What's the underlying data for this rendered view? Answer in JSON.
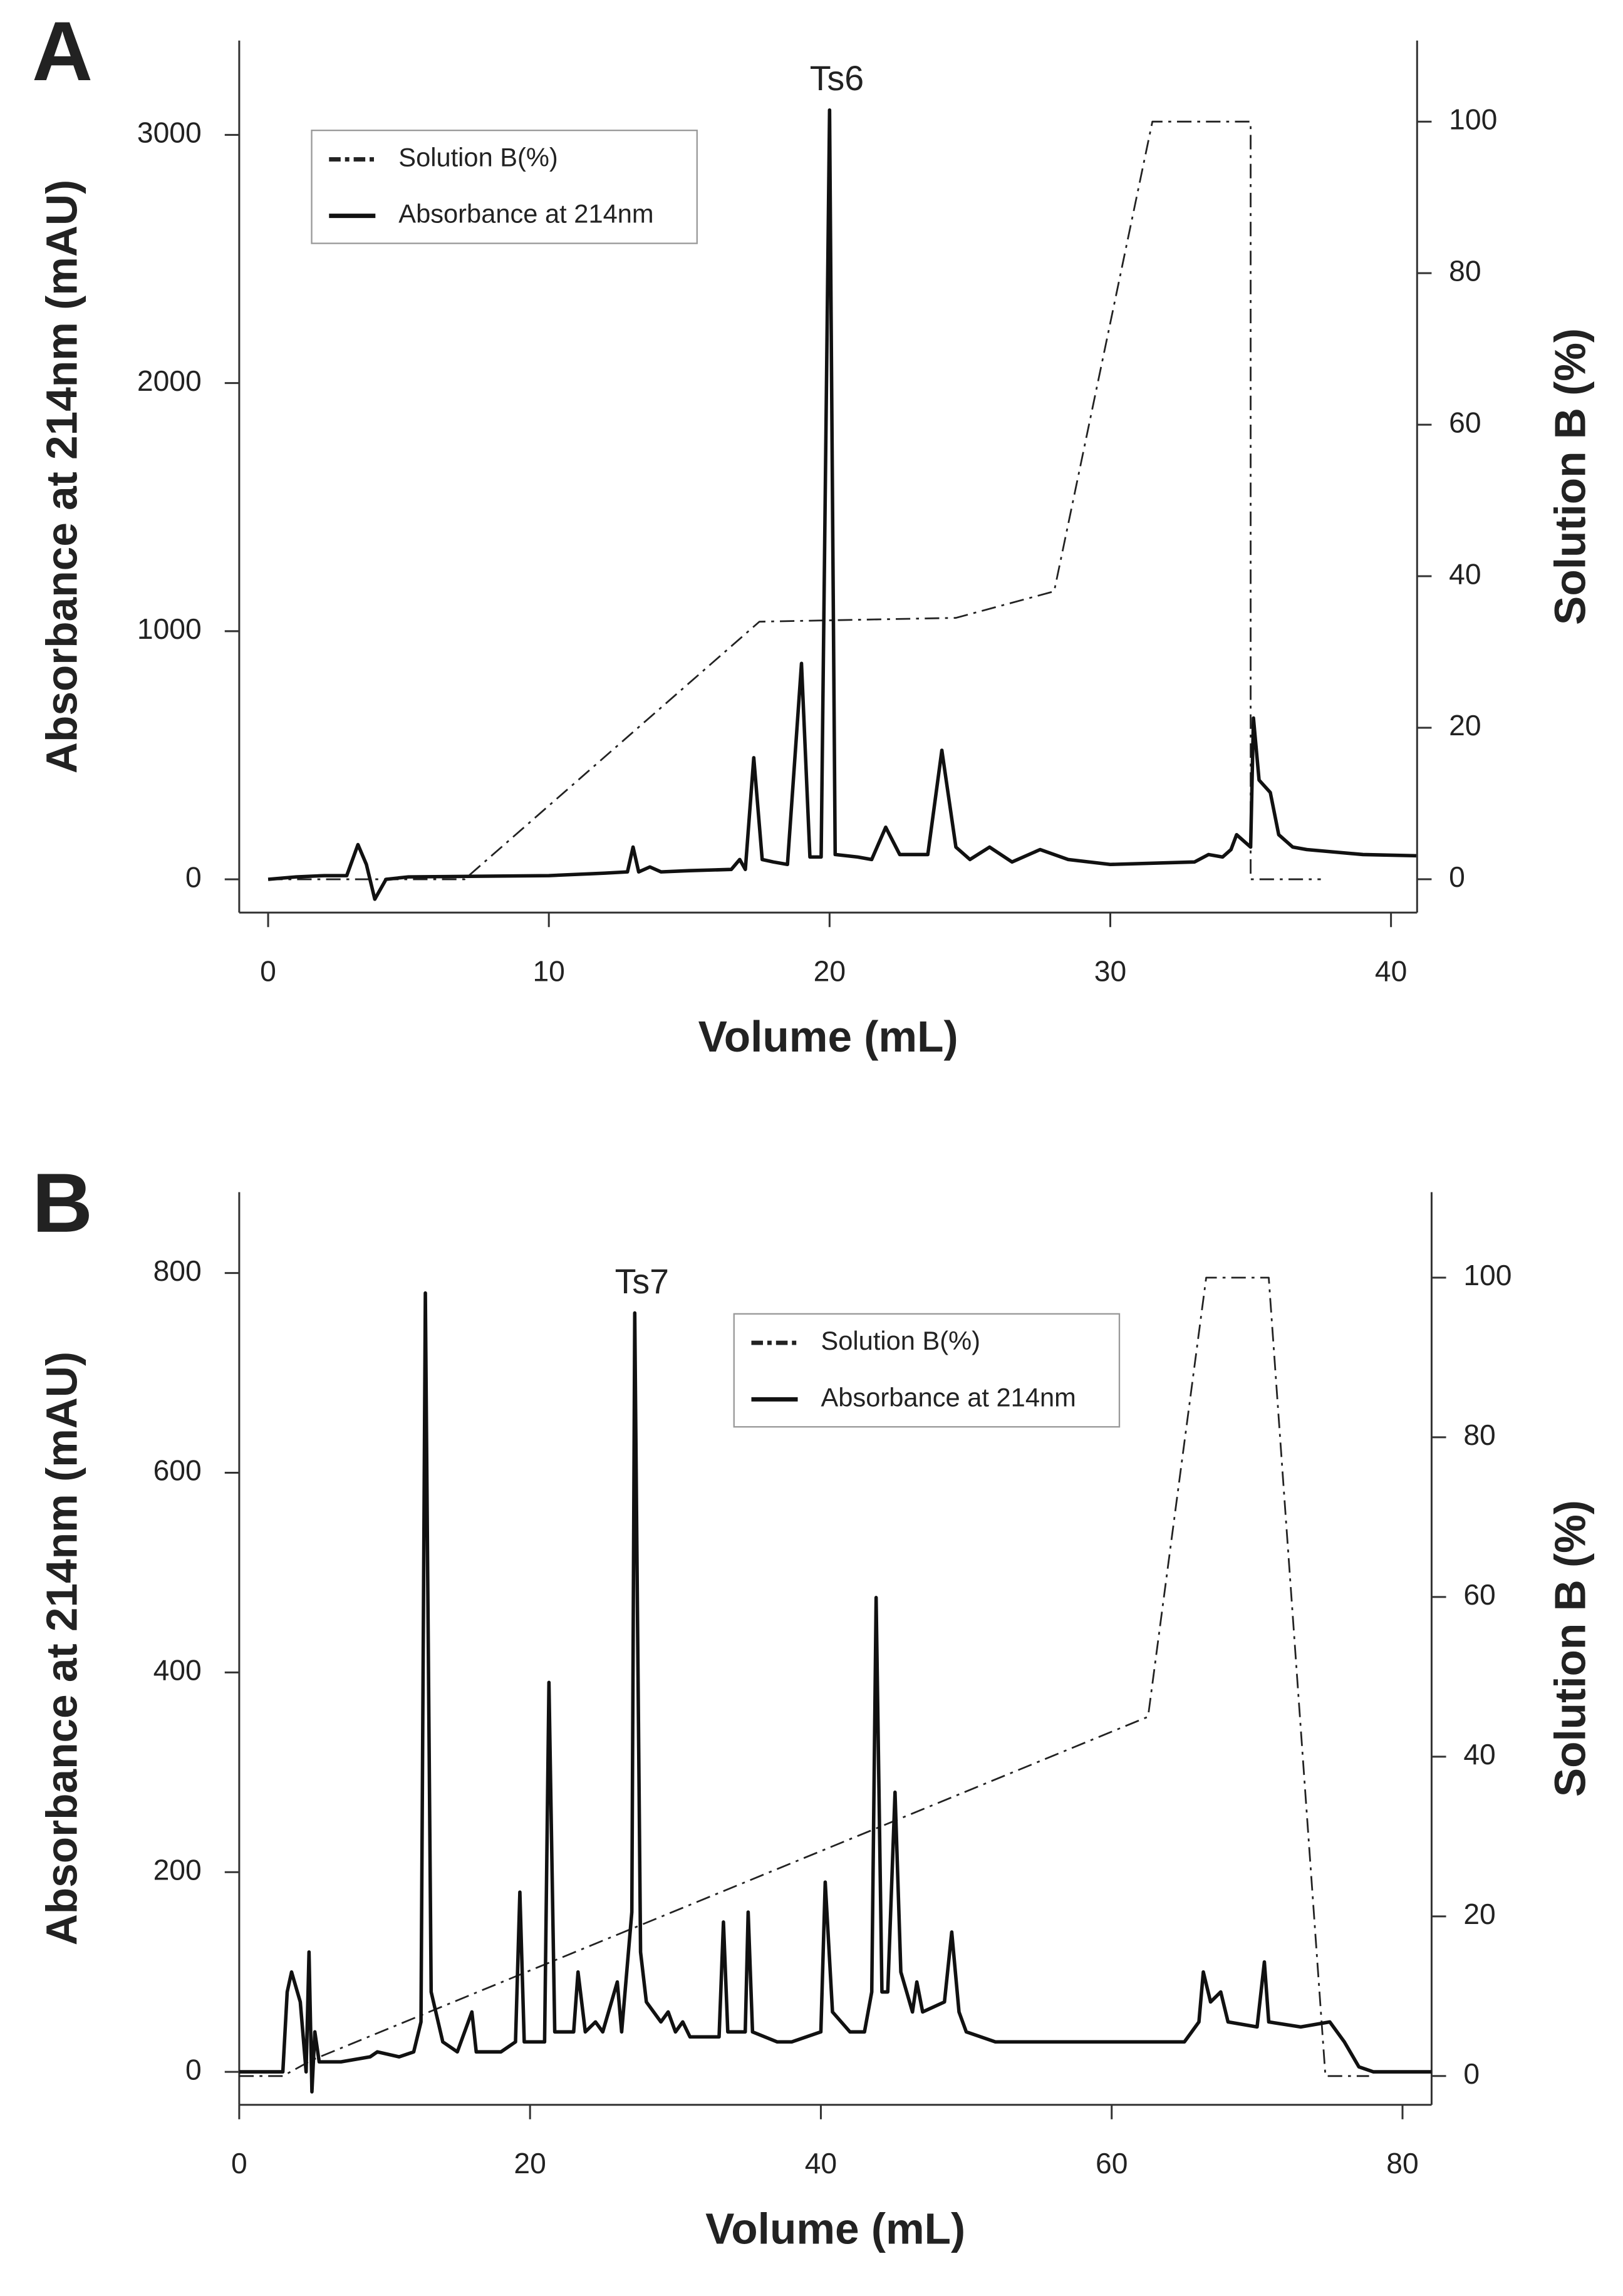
{
  "chart_data": [
    {
      "type": "line",
      "panel": "A",
      "xlabel": "Volume (mL)",
      "ylabel": "Absorbance at 214nm (mAU)",
      "y2label": "Solution B (%)",
      "xlim": [
        -1.03,
        40.93
      ],
      "ylim": [
        -134,
        3380
      ],
      "y2lim": [
        -4.4,
        110.7
      ],
      "xticks": [
        0,
        10,
        20,
        30,
        40
      ],
      "yticks": [
        0,
        1000,
        2000,
        3000
      ],
      "y2ticks": [
        0,
        20,
        40,
        60,
        80,
        100
      ],
      "legend_position": "upper left",
      "annotations": [
        {
          "text": "Ts6",
          "x": 20,
          "y": 3100
        }
      ],
      "series": [
        {
          "name": "Solution B(%)",
          "color": "#222222",
          "linestyle": "dashdot",
          "axis": "y2",
          "x": [
            0,
            7,
            17.5,
            24.5,
            28,
            31.5,
            35,
            35,
            37.5
          ],
          "values": [
            0,
            0,
            34,
            34.5,
            38,
            100,
            100,
            0,
            0
          ]
        },
        {
          "name": "Absorbance at 214nm",
          "color": "#111111",
          "linestyle": "solid",
          "axis": "y",
          "x": [
            0,
            1,
            2,
            2.8,
            3.2,
            3.5,
            3.8,
            4.2,
            5,
            10,
            12,
            12.8,
            13,
            13.2,
            13.6,
            14,
            15,
            16.5,
            16.8,
            17,
            17.3,
            17.6,
            18,
            18.5,
            19,
            19.3,
            19.7,
            20,
            20.2,
            21,
            21.5,
            22,
            22.5,
            23.5,
            24,
            24.5,
            25,
            25.7,
            26.5,
            27.5,
            28.5,
            30,
            33,
            33.5,
            34,
            34.3,
            34.5,
            35,
            35.1,
            35.3,
            35.7,
            36,
            36.5,
            37,
            38,
            39,
            40.9
          ],
          "values": [
            0,
            10,
            15,
            15,
            140,
            60,
            -80,
            0,
            10,
            15,
            25,
            30,
            130,
            30,
            50,
            30,
            35,
            40,
            80,
            40,
            490,
            80,
            70,
            60,
            870,
            90,
            90,
            3100,
            100,
            90,
            80,
            210,
            100,
            100,
            520,
            130,
            80,
            130,
            70,
            120,
            80,
            60,
            70,
            100,
            90,
            120,
            180,
            130,
            650,
            400,
            350,
            180,
            130,
            120,
            110,
            100,
            95
          ]
        }
      ]
    },
    {
      "type": "line",
      "panel": "B",
      "xlabel": "Volume (mL)",
      "ylabel": "Absorbance at 214nm (mAU)",
      "y2label": "Solution B (%)",
      "xlim": [
        0,
        82
      ],
      "ylim": [
        -33,
        881
      ],
      "y2lim": [
        -3.6,
        110.7
      ],
      "xticks": [
        0,
        20,
        40,
        60,
        80
      ],
      "yticks": [
        0,
        200,
        400,
        600,
        800
      ],
      "y2ticks": [
        0,
        20,
        40,
        60,
        80,
        100
      ],
      "legend_position": "upper center",
      "annotations": [
        {
          "text": "Ts7",
          "x": 27.2,
          "y": 760
        }
      ],
      "series": [
        {
          "name": "Solution B(%)",
          "color": "#222222",
          "linestyle": "dashdot",
          "axis": "y2",
          "x": [
            0,
            3,
            5,
            62.5,
            66.5,
            70.8,
            74.7,
            77.7
          ],
          "values": [
            0,
            0,
            2,
            45,
            100,
            100,
            0,
            0
          ]
        },
        {
          "name": "Absorbance at 214nm",
          "color": "#111111",
          "linestyle": "solid",
          "axis": "y",
          "x": [
            0,
            3,
            3.3,
            3.6,
            4.2,
            4.6,
            4.8,
            5,
            5.2,
            5.5,
            7,
            9,
            9.5,
            11,
            12,
            12.5,
            12.8,
            13.2,
            14,
            15,
            16,
            16.3,
            18,
            19,
            19.3,
            19.6,
            21,
            21.3,
            21.7,
            23,
            23.3,
            23.8,
            24.5,
            25,
            26,
            26.3,
            27,
            27.2,
            27.6,
            28,
            29,
            29.5,
            30,
            30.5,
            31,
            33,
            33.3,
            33.6,
            34.8,
            35,
            35.3,
            37,
            38,
            40,
            40.3,
            40.8,
            42,
            43,
            43.5,
            43.8,
            44.2,
            44.6,
            45.1,
            45.5,
            46.3,
            46.6,
            47,
            48.5,
            49,
            49.5,
            50,
            52,
            60,
            62,
            65,
            66,
            66.3,
            66.8,
            67.5,
            68,
            70,
            70.5,
            70.8,
            73,
            75,
            76,
            77,
            78,
            82
          ],
          "values": [
            0,
            0,
            80,
            100,
            70,
            0,
            120,
            -20,
            40,
            10,
            10,
            15,
            20,
            15,
            20,
            50,
            780,
            80,
            30,
            20,
            60,
            20,
            20,
            30,
            180,
            30,
            30,
            390,
            40,
            40,
            100,
            40,
            50,
            40,
            90,
            40,
            160,
            760,
            120,
            70,
            50,
            60,
            40,
            50,
            35,
            35,
            150,
            40,
            40,
            160,
            40,
            30,
            30,
            40,
            190,
            60,
            40,
            40,
            80,
            475,
            80,
            80,
            280,
            100,
            60,
            90,
            60,
            70,
            140,
            60,
            40,
            30,
            30,
            30,
            30,
            50,
            100,
            70,
            80,
            50,
            45,
            110,
            50,
            45,
            50,
            30,
            5,
            0,
            0
          ]
        }
      ]
    }
  ]
}
